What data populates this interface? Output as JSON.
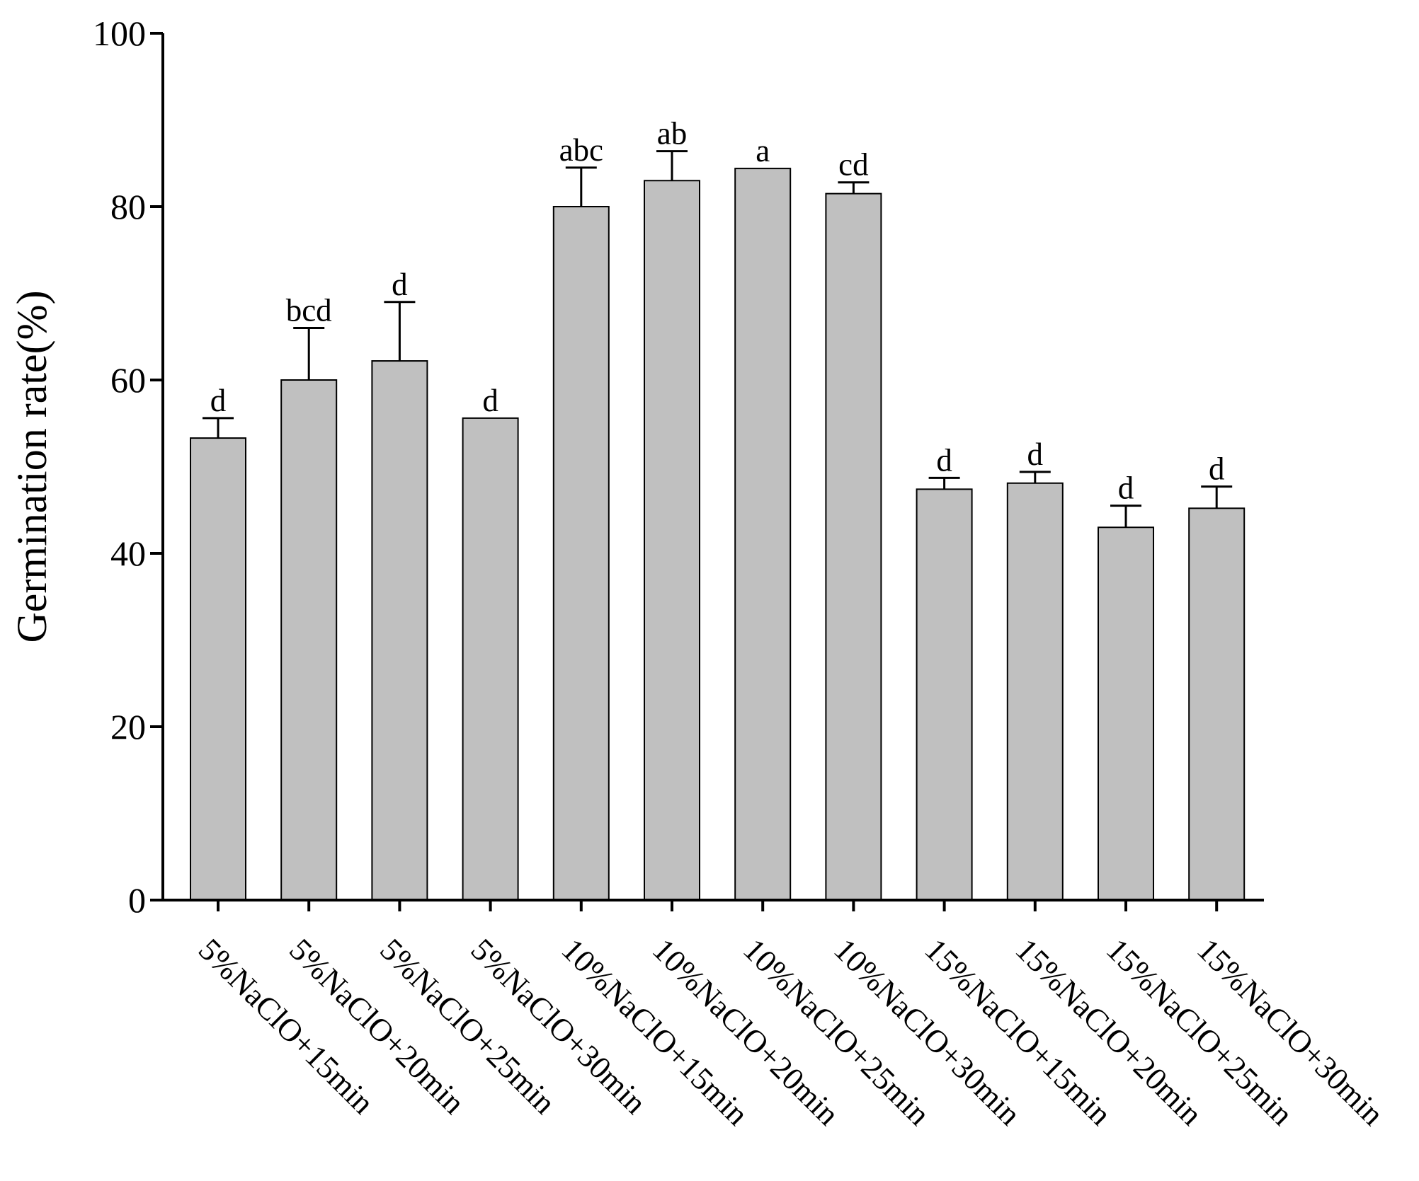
{
  "chart_data": {
    "type": "bar",
    "title": "",
    "xlabel": "",
    "ylabel": "Germination rate(%)",
    "ylim": [
      0,
      100
    ],
    "yticks": [
      0,
      20,
      40,
      60,
      80,
      100
    ],
    "grid": false,
    "legend": "none",
    "bar_color": "#c0c0c0",
    "categories": [
      "5%NaClO+15min",
      "5%NaClO+20min",
      "5%NaClO+25min",
      "5%NaClO+30min",
      "10%NaClO+15min",
      "10%NaClO+20min",
      "10%NaClO+25min",
      "10%NaClO+30min",
      "15%NaClO+15min",
      "15%NaClO+20min",
      "15%NaClO+25min",
      "15%NaClO+30min"
    ],
    "values": [
      53.3,
      60.0,
      62.2,
      55.6,
      80.0,
      83.0,
      84.4,
      81.5,
      47.4,
      48.1,
      43.0,
      45.2
    ],
    "errors": [
      2.3,
      6.0,
      6.8,
      0,
      4.5,
      3.4,
      0,
      1.3,
      1.3,
      1.3,
      2.5,
      2.5
    ],
    "significance": [
      "d",
      "bcd",
      "d",
      "d",
      "abc",
      "ab",
      "a",
      "cd",
      "d",
      "d",
      "d",
      "d"
    ]
  }
}
